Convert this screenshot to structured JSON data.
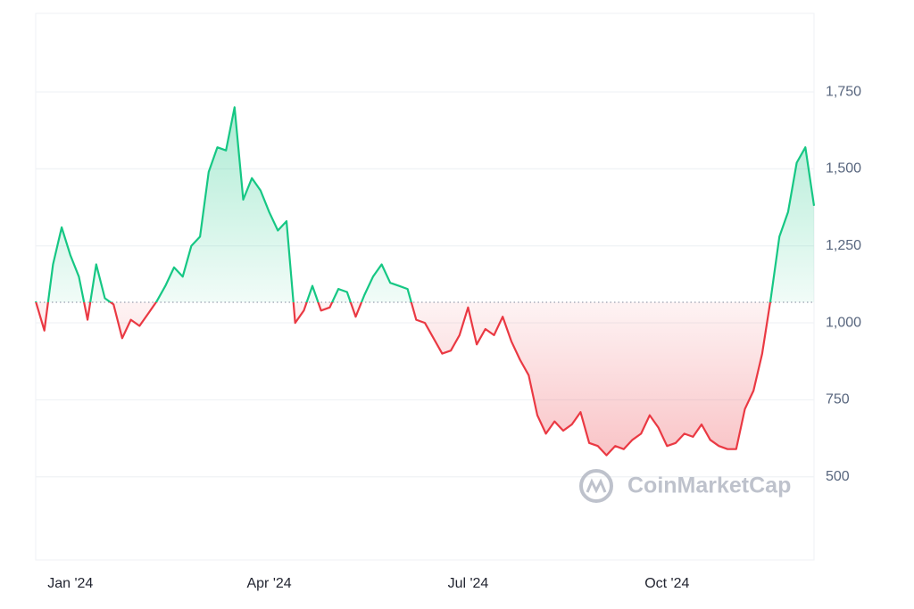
{
  "chart_data": {
    "type": "baseline-line",
    "categories": [
      null,
      null,
      null,
      null,
      "Jan '24",
      null,
      null,
      null,
      null,
      null,
      null,
      null,
      null,
      null,
      null,
      null,
      null,
      null,
      null,
      null,
      null,
      null,
      null,
      null,
      null,
      null,
      null,
      "Apr '24",
      null,
      null,
      null,
      null,
      null,
      null,
      null,
      null,
      null,
      null,
      null,
      null,
      null,
      null,
      null,
      null,
      null,
      null,
      null,
      null,
      null,
      null,
      "Jul '24",
      null,
      null,
      null,
      null,
      null,
      null,
      null,
      null,
      null,
      null,
      null,
      null,
      null,
      null,
      null,
      null,
      null,
      null,
      null,
      null,
      null,
      null,
      "Oct '24",
      null,
      null,
      null,
      null,
      null,
      null,
      null,
      null,
      null,
      null,
      null,
      null,
      null,
      null,
      null,
      null,
      null
    ],
    "values": [
      1070,
      975,
      1190,
      1310,
      1220,
      1150,
      1010,
      1190,
      1080,
      1060,
      950,
      1010,
      990,
      1030,
      1070,
      1120,
      1180,
      1150,
      1250,
      1280,
      1490,
      1570,
      1560,
      1700,
      1400,
      1470,
      1430,
      1360,
      1300,
      1330,
      1000,
      1040,
      1120,
      1040,
      1050,
      1110,
      1100,
      1020,
      1090,
      1150,
      1190,
      1130,
      1120,
      1110,
      1010,
      1000,
      950,
      900,
      910,
      960,
      1050,
      930,
      980,
      960,
      1020,
      940,
      880,
      830,
      700,
      640,
      680,
      650,
      670,
      710,
      610,
      600,
      570,
      600,
      590,
      620,
      640,
      700,
      660,
      600,
      610,
      640,
      630,
      670,
      620,
      600,
      590,
      590,
      720,
      780,
      900,
      1080,
      1280,
      1360,
      1520,
      1570,
      1380
    ],
    "baseline": 1067,
    "up_color": "#16c784",
    "down_color": "#ea3943",
    "ylim": [
      230,
      2005
    ],
    "yticks": [
      500,
      750,
      {
        "value": 1000,
        "label": "1,000"
      },
      {
        "value": 1250,
        "label": "1,250"
      },
      {
        "value": 1500,
        "label": "1,500"
      },
      {
        "value": 1750,
        "label": "1,750"
      }
    ],
    "grid": true,
    "watermark": "CoinMarketCap"
  }
}
